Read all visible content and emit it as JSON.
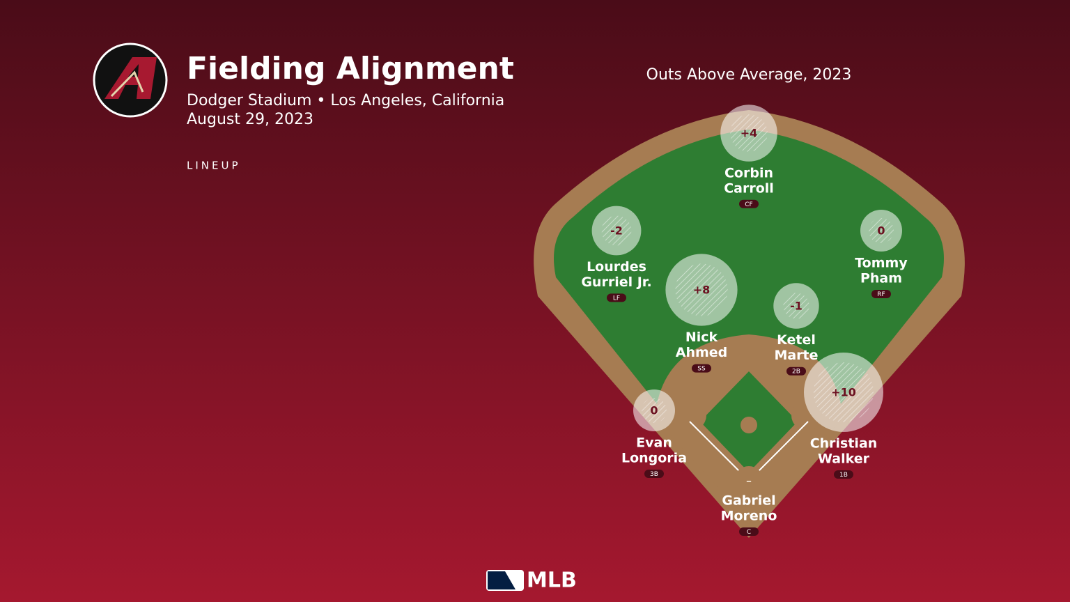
{
  "header": {
    "title": "Fielding Alignment",
    "venue": "Dodger Stadium • Los Angeles, California",
    "date": "August 29, 2023",
    "section": "LINEUP"
  },
  "legend_title": "Outs Above Average, 2023",
  "players": [
    {
      "name_lines": [
        "Corbin",
        "Carroll"
      ],
      "position": "CF",
      "oaa": 4,
      "oaa_label": "+4"
    },
    {
      "name_lines": [
        "Lourdes",
        "Gurriel Jr."
      ],
      "position": "LF",
      "oaa": -2,
      "oaa_label": "-2"
    },
    {
      "name_lines": [
        "Tommy",
        "Pham"
      ],
      "position": "RF",
      "oaa": 0,
      "oaa_label": "0"
    },
    {
      "name_lines": [
        "Nick",
        "Ahmed"
      ],
      "position": "SS",
      "oaa": 8,
      "oaa_label": "+8"
    },
    {
      "name_lines": [
        "Ketel",
        "Marte"
      ],
      "position": "2B",
      "oaa": -1,
      "oaa_label": "-1"
    },
    {
      "name_lines": [
        "Evan",
        "Longoria"
      ],
      "position": "3B",
      "oaa": 0,
      "oaa_label": "0"
    },
    {
      "name_lines": [
        "Christian",
        "Walker"
      ],
      "position": "1B",
      "oaa": 10,
      "oaa_label": "+10"
    },
    {
      "name_lines": [
        "Gabriel",
        "Moreno"
      ],
      "position": "C",
      "oaa": null,
      "oaa_label": "–"
    }
  ],
  "footer": {
    "brand": "MLB"
  }
}
